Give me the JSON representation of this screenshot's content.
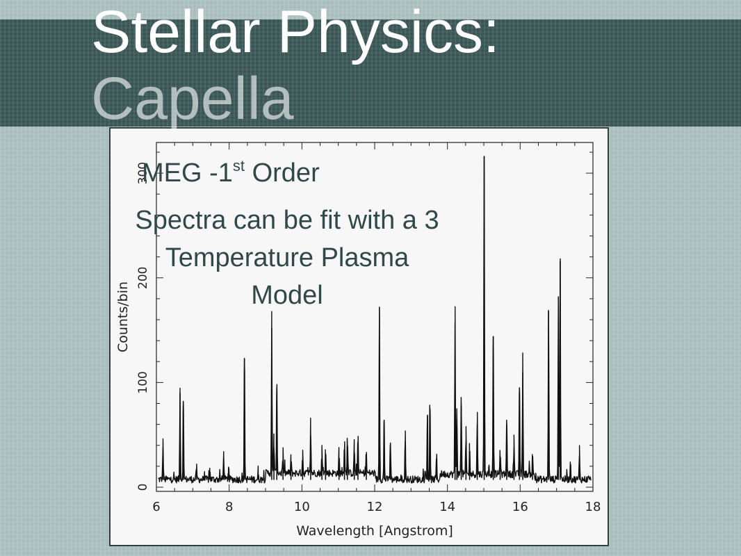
{
  "slide": {
    "title_line1": "Stellar Physics:",
    "title_line2": "Capella",
    "subtitle_main": "MEG -1",
    "subtitle_sup": "st",
    "subtitle_rest": " Order",
    "note": "Spectra can be fit with a 3 Temperature Plasma Model"
  },
  "colors": {
    "band": "#3f5c5b",
    "background": "#a9bebc",
    "text_dark": "#31484a",
    "line": "#111111"
  },
  "chart_data": {
    "type": "line",
    "title": "",
    "xlabel": "Wavelength [Angstrom]",
    "ylabel": "Counts/bin",
    "xlim": [
      6,
      18
    ],
    "ylim": [
      0,
      320
    ],
    "xticks": [
      6,
      8,
      10,
      12,
      14,
      16,
      18
    ],
    "yticks": [
      0,
      100,
      200,
      300
    ],
    "grid": false,
    "baseline": 4,
    "peaks": [
      {
        "x": 6.18,
        "y": 38
      },
      {
        "x": 6.65,
        "y": 90
      },
      {
        "x": 6.74,
        "y": 82
      },
      {
        "x": 7.1,
        "y": 14
      },
      {
        "x": 7.47,
        "y": 10
      },
      {
        "x": 7.85,
        "y": 28
      },
      {
        "x": 7.98,
        "y": 12
      },
      {
        "x": 8.42,
        "y": 123
      },
      {
        "x": 8.8,
        "y": 10
      },
      {
        "x": 9.17,
        "y": 152
      },
      {
        "x": 9.23,
        "y": 38
      },
      {
        "x": 9.31,
        "y": 95
      },
      {
        "x": 9.48,
        "y": 22
      },
      {
        "x": 9.7,
        "y": 18
      },
      {
        "x": 10.02,
        "y": 24
      },
      {
        "x": 10.24,
        "y": 50
      },
      {
        "x": 10.55,
        "y": 26
      },
      {
        "x": 10.65,
        "y": 24
      },
      {
        "x": 11.02,
        "y": 24
      },
      {
        "x": 11.17,
        "y": 36
      },
      {
        "x": 11.25,
        "y": 40
      },
      {
        "x": 11.44,
        "y": 34
      },
      {
        "x": 11.54,
        "y": 40
      },
      {
        "x": 11.77,
        "y": 22
      },
      {
        "x": 12.13,
        "y": 172
      },
      {
        "x": 12.26,
        "y": 64
      },
      {
        "x": 12.43,
        "y": 40
      },
      {
        "x": 12.84,
        "y": 44
      },
      {
        "x": 13.45,
        "y": 68
      },
      {
        "x": 13.52,
        "y": 75
      },
      {
        "x": 13.7,
        "y": 26
      },
      {
        "x": 14.21,
        "y": 158
      },
      {
        "x": 14.26,
        "y": 66
      },
      {
        "x": 14.38,
        "y": 78
      },
      {
        "x": 14.51,
        "y": 44
      },
      {
        "x": 14.61,
        "y": 30
      },
      {
        "x": 14.82,
        "y": 60
      },
      {
        "x": 15.01,
        "y": 316
      },
      {
        "x": 15.26,
        "y": 144
      },
      {
        "x": 15.45,
        "y": 28
      },
      {
        "x": 15.63,
        "y": 60
      },
      {
        "x": 15.83,
        "y": 38
      },
      {
        "x": 15.98,
        "y": 95
      },
      {
        "x": 16.07,
        "y": 110
      },
      {
        "x": 16.34,
        "y": 20
      },
      {
        "x": 16.78,
        "y": 168
      },
      {
        "x": 17.05,
        "y": 182
      },
      {
        "x": 17.1,
        "y": 216
      },
      {
        "x": 17.38,
        "y": 20
      },
      {
        "x": 17.63,
        "y": 30
      }
    ]
  }
}
